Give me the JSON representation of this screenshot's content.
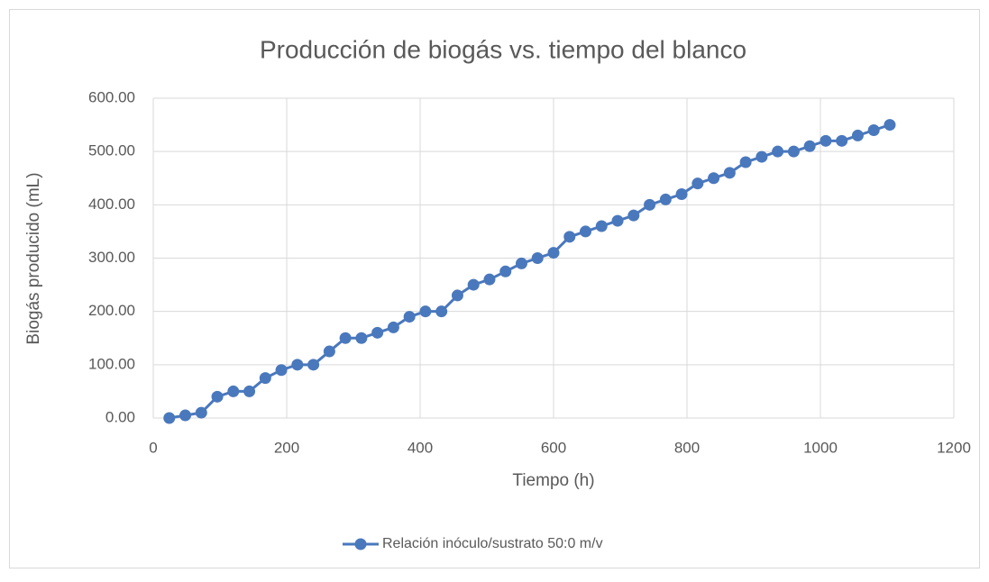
{
  "chart_data": {
    "type": "line",
    "title": "Producción de biogás vs. tiempo del blanco",
    "x_label": "Tiempo (h)",
    "y_label": "Biogás producido (mL)",
    "x": [
      24,
      48,
      72,
      96,
      120,
      144,
      168,
      192,
      216,
      240,
      264,
      288,
      312,
      336,
      360,
      384,
      408,
      432,
      456,
      480,
      504,
      528,
      552,
      576,
      600,
      624,
      648,
      672,
      696,
      720,
      744,
      768,
      792,
      816,
      840,
      864,
      888,
      912,
      936,
      960,
      984,
      1008,
      1032,
      1056,
      1080,
      1104
    ],
    "series": [
      {
        "name": "Relación inóculo/sustrato 50:0 m/v",
        "color": "#4a78bd",
        "values": [
          0,
          5,
          10,
          40,
          50,
          50,
          75,
          90,
          100,
          100,
          125,
          150,
          150,
          160,
          170,
          190,
          200,
          200,
          230,
          250,
          260,
          275,
          290,
          300,
          310,
          340,
          350,
          360,
          370,
          380,
          400,
          410,
          420,
          440,
          450,
          460,
          480,
          490,
          500,
          500,
          510,
          520,
          520,
          530,
          540,
          550
        ]
      }
    ],
    "xlim": [
      0,
      1200
    ],
    "xticks": [
      0,
      200,
      400,
      600,
      800,
      1000,
      1200
    ],
    "ylim": [
      0,
      600
    ],
    "yticks": [
      {
        "value": 0,
        "label": "0.00"
      },
      {
        "value": 100,
        "label": "100.00"
      },
      {
        "value": 200,
        "label": "200.00"
      },
      {
        "value": 300,
        "label": "300.00"
      },
      {
        "value": 400,
        "label": "400.00"
      },
      {
        "value": 500,
        "label": "500.00"
      },
      {
        "value": 600,
        "label": "600.00"
      }
    ],
    "grid": true,
    "legend": "bottom"
  }
}
